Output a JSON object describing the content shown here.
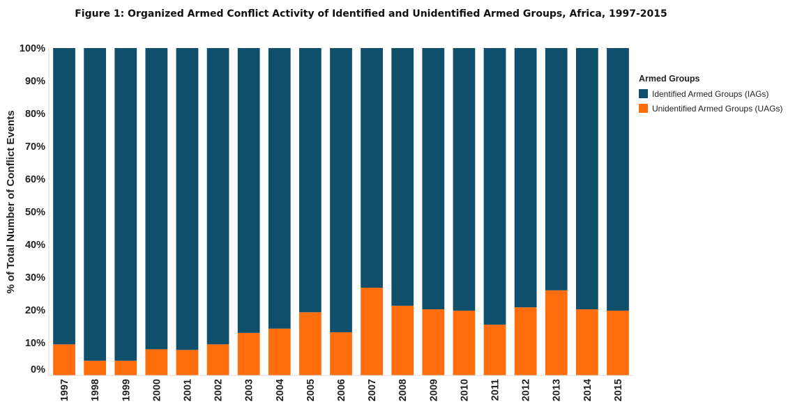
{
  "chart_data": {
    "type": "bar",
    "stacked": true,
    "normalized": true,
    "title": "Figure 1: Organized Armed Conflict Activity of Identified and Unidentified Armed Groups, Africa, 1997-2015",
    "xlabel": "",
    "ylabel": "% of Total Number of Conflict Events",
    "ylim": [
      0,
      100
    ],
    "yticks": [
      "0%",
      "10%",
      "20%",
      "30%",
      "40%",
      "50%",
      "60%",
      "70%",
      "80%",
      "90%",
      "100%"
    ],
    "categories": [
      "1997",
      "1998",
      "1999",
      "2000",
      "2001",
      "2002",
      "2003",
      "2004",
      "2005",
      "2006",
      "2007",
      "2008",
      "2009",
      "2010",
      "2011",
      "2012",
      "2013",
      "2014",
      "2015"
    ],
    "series": [
      {
        "name": "Unidentified Armed Groups (UAGs)",
        "color": "#ff6d0d",
        "values": [
          9.5,
          4.5,
          4.5,
          8,
          7.8,
          9.5,
          13,
          14.3,
          19.3,
          13.2,
          26.8,
          21.3,
          20.2,
          19.8,
          15.5,
          20.8,
          26,
          20.2,
          19.8
        ]
      },
      {
        "name": "Identified Armed Groups (IAGs)",
        "color": "#0f4f6b",
        "values": [
          90.5,
          95.5,
          95.5,
          92,
          92.2,
          90.5,
          87,
          85.7,
          80.7,
          86.8,
          73.2,
          78.7,
          79.8,
          80.2,
          84.5,
          79.2,
          74,
          79.8,
          80.2
        ]
      }
    ],
    "legend": {
      "title": "Armed Groups",
      "position": "right",
      "items": [
        {
          "label": "Identified Armed Groups (IAGs)",
          "color": "#0f4f6b"
        },
        {
          "label": "Unidentified Armed Groups (UAGs)",
          "color": "#ff6d0d"
        }
      ]
    },
    "grid": false
  }
}
